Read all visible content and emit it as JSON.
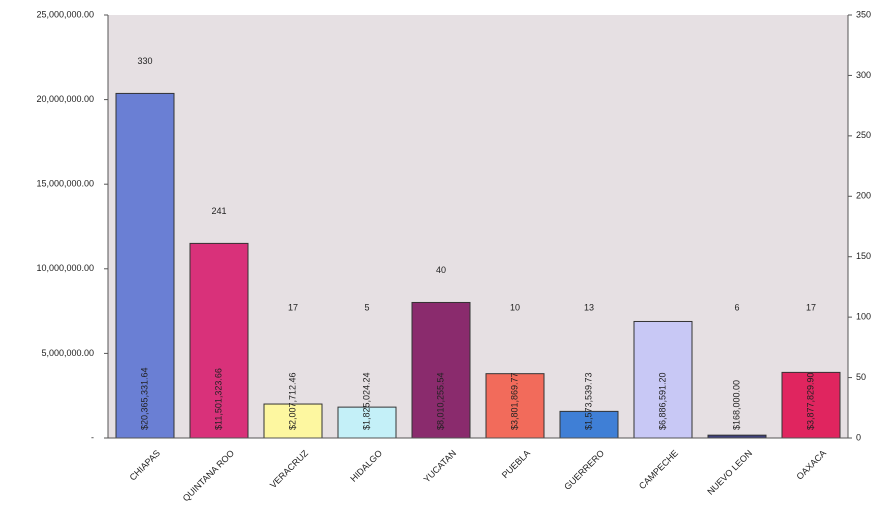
{
  "chart_data": {
    "type": "bar",
    "categories": [
      "CHIAPAS",
      "QUINTANA ROO",
      "VERACRUZ",
      "HIDALGO",
      "YUCATAN",
      "PUEBLA",
      "GUERRERO",
      "CAMPECHE",
      "NUEVO LEON",
      "OAXACA"
    ],
    "series": [
      {
        "values": [
          20365331.64,
          11501323.66,
          2007712.46,
          1825024.24,
          8010255.54,
          3801869.77,
          1573539.73,
          6886591.2,
          168000.0,
          3877829.9
        ],
        "value_labels": [
          "$20,365,331.64",
          "$11,501,323.66",
          "$2,007,712.46",
          "$1,825,024.24",
          "$8,010,255.54",
          "$3,801,869.77",
          "$1,573,539.73",
          "$6,886,591.20",
          "$168,000.00",
          "$3,877,829.90"
        ],
        "colors": [
          "#6a7fd4",
          "#d9317a",
          "#fdf7a0",
          "#c4f0f8",
          "#8a2b6d",
          "#f26b5b",
          "#3f7fd6",
          "#c8c8f5",
          "#3d3f7a",
          "#e0255f"
        ]
      },
      {
        "axis": "y2",
        "values": [
          330,
          241,
          17,
          5,
          40,
          10,
          13,
          null,
          6,
          17
        ]
      }
    ],
    "ylim": [
      0,
      25000000
    ],
    "yticks": [
      {
        "value": 0,
        "label": "-"
      },
      {
        "value": 5000000,
        "label": "5,000,000.00"
      },
      {
        "value": 10000000,
        "label": "10,000,000.00"
      },
      {
        "value": 15000000,
        "label": "15,000,000.00"
      },
      {
        "value": 20000000,
        "label": "20,000,000.00"
      },
      {
        "value": 25000000,
        "label": "25,000,000.00"
      }
    ],
    "y2lim": [
      0,
      350
    ],
    "y2ticks": [
      0,
      50,
      100,
      150,
      200,
      250,
      300,
      350
    ],
    "background": "#e6e0e3"
  }
}
